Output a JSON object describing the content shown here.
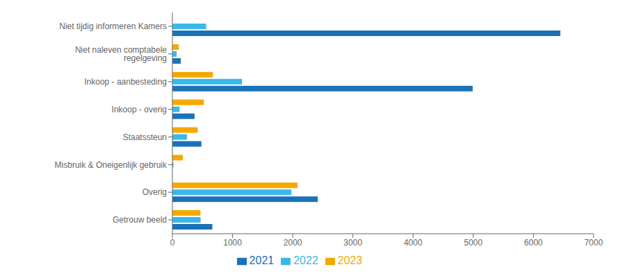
{
  "chart_data": {
    "type": "bar",
    "orientation": "horizontal",
    "categories": [
      "Niet tijdig informeren Kamers",
      "Niet naleven comptabele regelgeving",
      "Inkoop - aanbesteding",
      "Inkoop - overig",
      "Staatssteun",
      "Misbruik & Oneigenlijk gebruik",
      "Overig",
      "Getrouw beeld"
    ],
    "series": [
      {
        "name": "2023",
        "color": "#f5a800",
        "values": [
          2,
          107,
          674,
          523,
          422,
          175,
          2080,
          467
        ]
      },
      {
        "name": "2022",
        "color": "#3bb8e8",
        "values": [
          562,
          71,
          1158,
          120,
          242,
          18,
          1978,
          469
        ]
      },
      {
        "name": "2021",
        "color": "#1a72b8",
        "values": [
          6448,
          140,
          4991,
          368,
          483,
          0,
          2417,
          664
        ]
      }
    ],
    "xlim": [
      0,
      7000
    ],
    "xticks": [
      0,
      1000,
      2000,
      3000,
      4000,
      5000,
      6000,
      7000
    ],
    "grid": false,
    "legend": "bottom"
  }
}
